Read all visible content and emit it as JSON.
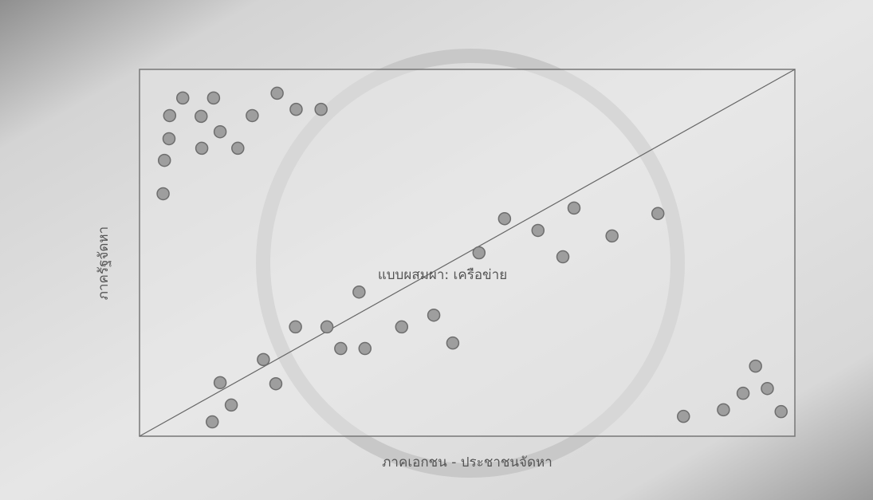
{
  "chart_data": {
    "type": "scatter",
    "annotation": "แบบผสมผา: เครือข่าย",
    "x_label": "ภาคเอกชน - ประชาชนจัดหา",
    "y_label": "ภาครัฐจัดหา",
    "xlim": [
      0,
      100
    ],
    "ylim": [
      0,
      100
    ],
    "color": "#9e9e9e",
    "x": [
      3.6,
      3.8,
      4.5,
      4.6,
      6.6,
      9.4,
      9.5,
      11.3,
      12.3,
      15.0,
      17.2,
      21.0,
      23.9,
      27.7,
      11.1,
      12.3,
      14.0,
      18.9,
      20.8,
      23.8,
      28.6,
      30.7,
      34.4,
      33.5,
      40.0,
      44.9,
      47.8,
      51.8,
      55.7,
      60.8,
      64.6,
      66.3,
      72.1,
      79.1,
      83.0,
      89.1,
      92.1,
      94.0,
      95.8,
      97.9
    ],
    "values": [
      66.1,
      75.2,
      81.1,
      87.4,
      92.2,
      87.2,
      78.5,
      92.2,
      83.0,
      78.5,
      87.4,
      93.5,
      89.1,
      89.1,
      3.9,
      14.6,
      8.5,
      20.9,
      14.3,
      29.8,
      29.8,
      23.9,
      23.9,
      39.3,
      29.8,
      33.0,
      25.4,
      50.0,
      59.3,
      56.1,
      48.9,
      62.2,
      54.6,
      60.7,
      5.4,
      7.2,
      11.7,
      19.1,
      13.0,
      6.7
    ]
  }
}
